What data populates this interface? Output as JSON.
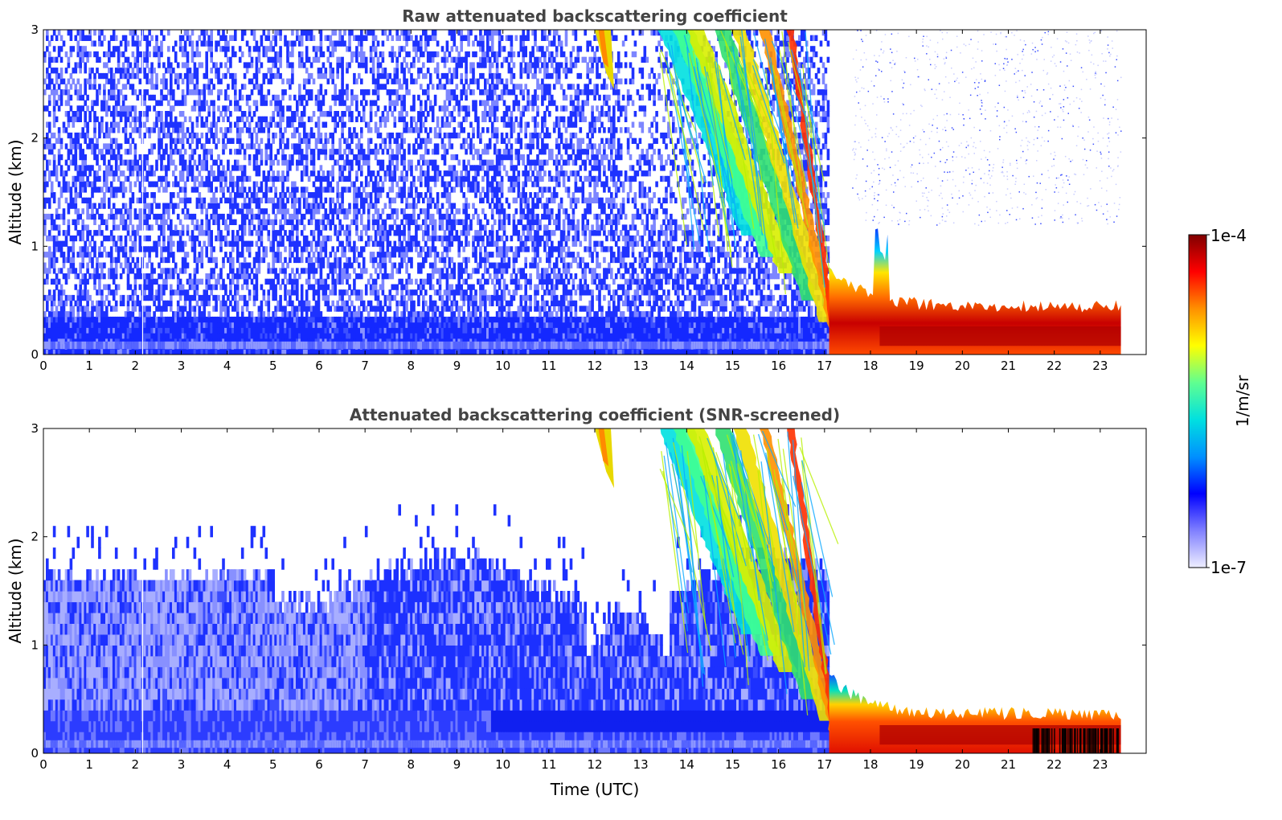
{
  "chart_data": [
    {
      "type": "heatmap",
      "title": "Raw attenuated backscattering coefficient",
      "xlabel": "",
      "ylabel": "Altitude (km)",
      "xlim": [
        0,
        24
      ],
      "ylim": [
        0,
        3
      ],
      "x_ticks": [
        "0",
        "1",
        "2",
        "3",
        "4",
        "5",
        "6",
        "7",
        "8",
        "9",
        "10",
        "11",
        "12",
        "13",
        "14",
        "15",
        "16",
        "17",
        "18",
        "19",
        "20",
        "21",
        "22",
        "23"
      ],
      "y_ticks": [
        "0",
        "1",
        "2",
        "3"
      ],
      "grid": false,
      "data_end_time": 23.45,
      "features": [
        {
          "time_start": 0,
          "time_end": 17.1,
          "altitude_km": [
            0,
            3
          ],
          "value": "1e-7 to 1e-6, noisy aerosol layer, denser below 0.4 km"
        },
        {
          "time_start": 12.0,
          "time_end": 12.4,
          "altitude_km": [
            2.5,
            3
          ],
          "value": "cloud streak ~1e-5"
        },
        {
          "time_start": 13.4,
          "time_end": 17.2,
          "altitude_km": [
            0.2,
            3
          ],
          "value": "descending precipitation / cloud band 1e-6 to 5e-5"
        },
        {
          "time_start": 17.1,
          "time_end": 23.45,
          "altitude_km": [
            0,
            0.45
          ],
          "value": "strong boundary layer 1e-5 to 1e-4"
        },
        {
          "time_start": 17.1,
          "time_end": 23.45,
          "altitude_km": [
            0.45,
            3
          ],
          "value": "very weak noise, mostly below 1e-7"
        }
      ]
    },
    {
      "type": "heatmap",
      "title": "Attenuated backscattering coefficient (SNR-screened)",
      "xlabel": "Time (UTC)",
      "ylabel": "Altitude (km)",
      "xlim": [
        0,
        24
      ],
      "ylim": [
        0,
        3
      ],
      "x_ticks": [
        "0",
        "1",
        "2",
        "3",
        "4",
        "5",
        "6",
        "7",
        "8",
        "9",
        "10",
        "11",
        "12",
        "13",
        "14",
        "15",
        "16",
        "17",
        "18",
        "19",
        "20",
        "21",
        "22",
        "23"
      ],
      "y_ticks": [
        "0",
        "1",
        "2",
        "3"
      ],
      "grid": false,
      "data_end_time": 23.45,
      "features": [
        {
          "time_start": 0,
          "time_end": 17.1,
          "altitude_km": [
            0,
            1.6
          ],
          "value": "aerosol layer 1e-7 to 1e-6 retained after screening"
        },
        {
          "time_start": 12.0,
          "time_end": 12.4,
          "altitude_km": [
            2.5,
            3
          ],
          "value": "cloud streak ~1e-5"
        },
        {
          "time_start": 13.4,
          "time_end": 17.2,
          "altitude_km": [
            0.2,
            3
          ],
          "value": "descending precipitation / cloud band 1e-6 to 5e-5"
        },
        {
          "time_start": 17.1,
          "time_end": 23.45,
          "altitude_km": [
            0,
            0.35
          ],
          "value": "strong boundary layer 1e-5 to 1e-4, saturated near 22.5-23.4 h"
        }
      ]
    }
  ],
  "colorbar": {
    "label": "1/m/sr",
    "max_label": "1e-4",
    "min_label": "1e-7",
    "scale": "log",
    "colormap": [
      "#eeeeff",
      "#8080ff",
      "#0000ff",
      "#0090ff",
      "#00e0e0",
      "#60ff90",
      "#ffff00",
      "#ff9000",
      "#ff0000",
      "#800000"
    ]
  }
}
